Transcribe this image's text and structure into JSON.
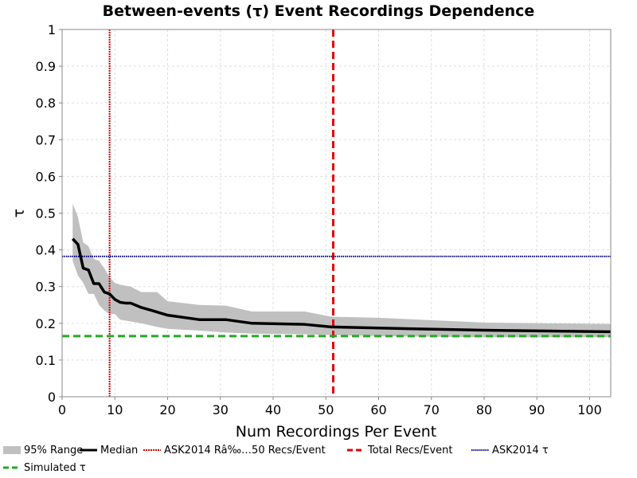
{
  "colors": {
    "band": "#c0c0c0",
    "median": "#000000",
    "ask_line": "#cc0000",
    "total_line": "#e60000",
    "ask_tau": "#000080",
    "simulated": "#22aa22",
    "grid": "#dddddd"
  },
  "chart_data": {
    "type": "line",
    "title": "Between-events (τ) Event Recordings Dependence",
    "xlabel": "Num Recordings Per Event",
    "ylabel": "τ",
    "xlim": [
      0,
      104
    ],
    "ylim": [
      0,
      1
    ],
    "xticks": [
      "0",
      "10",
      "20",
      "30",
      "40",
      "50",
      "60",
      "70",
      "80",
      "90",
      "100"
    ],
    "yticks": [
      "0",
      "0.1",
      "0.2",
      "0.3",
      "0.4",
      "0.5",
      "0.6",
      "0.7",
      "0.8",
      "0.9",
      "1"
    ],
    "grid": true,
    "legend_position": "bottom",
    "band": {
      "name": "95% Range",
      "x": [
        2,
        3,
        4,
        5,
        6,
        7,
        8,
        9,
        10,
        11,
        13,
        15,
        18,
        20,
        26,
        31,
        36,
        46,
        51,
        60,
        80,
        104
      ],
      "upper": [
        0.525,
        0.49,
        0.42,
        0.41,
        0.375,
        0.37,
        0.35,
        0.325,
        0.31,
        0.305,
        0.3,
        0.285,
        0.285,
        0.26,
        0.25,
        0.248,
        0.232,
        0.232,
        0.218,
        0.215,
        0.202,
        0.198
      ],
      "lower": [
        0.37,
        0.33,
        0.31,
        0.28,
        0.28,
        0.25,
        0.235,
        0.225,
        0.225,
        0.21,
        0.205,
        0.2,
        0.19,
        0.185,
        0.18,
        0.175,
        0.172,
        0.17,
        0.168,
        0.165,
        0.162,
        0.162
      ]
    },
    "series": [
      {
        "name": "Median",
        "x": [
          2,
          3,
          4,
          5,
          6,
          7,
          8,
          9,
          10,
          11,
          12,
          13,
          15,
          17,
          20,
          26,
          31,
          36,
          46,
          51,
          60,
          80,
          104
        ],
        "y": [
          0.43,
          0.415,
          0.35,
          0.345,
          0.308,
          0.308,
          0.285,
          0.28,
          0.265,
          0.257,
          0.255,
          0.255,
          0.243,
          0.235,
          0.222,
          0.21,
          0.21,
          0.2,
          0.197,
          0.19,
          0.187,
          0.181,
          0.177
        ]
      }
    ],
    "vlines": [
      {
        "name": "ASK2014 Râ‰…50 Recs/Event",
        "x": 9
      },
      {
        "name": "Total Recs/Event",
        "x": 51.4
      }
    ],
    "hlines": [
      {
        "name": "ASK2014 τ",
        "y": 0.382
      },
      {
        "name": "Simulated τ",
        "y": 0.165
      }
    ],
    "legend": [
      "95% Range",
      "Median",
      "ASK2014 Râ‰…50 Recs/Event",
      "Total Recs/Event",
      "ASK2014 τ",
      "Simulated τ"
    ]
  }
}
